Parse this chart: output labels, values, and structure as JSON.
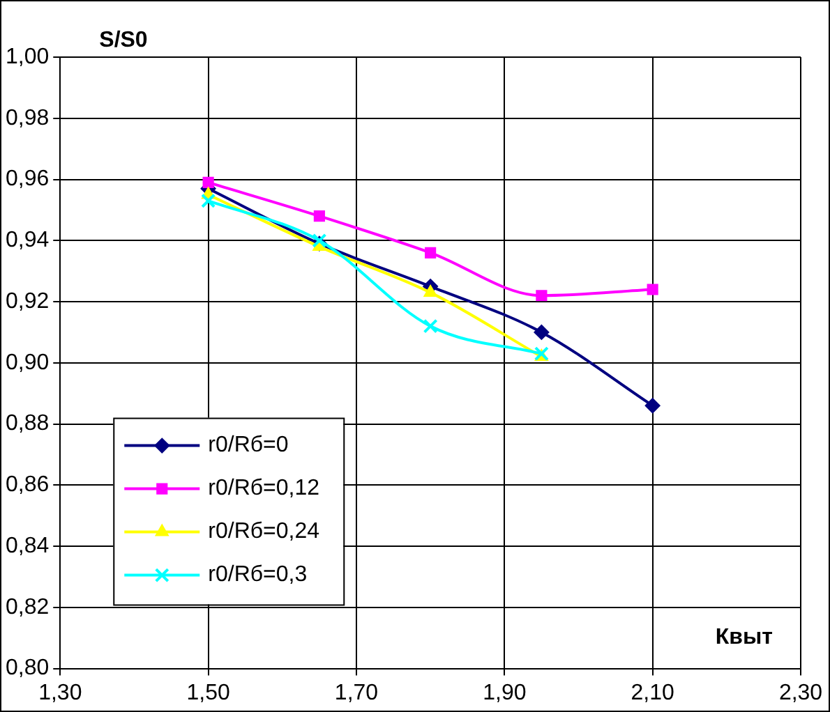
{
  "chart_data": {
    "type": "line",
    "xlabel": "Квыт",
    "ylabel": "S/S0",
    "x": [
      1.5,
      1.65,
      1.8,
      1.95,
      2.1
    ],
    "series": [
      {
        "name": "r0/Rб=0",
        "color": "#000080",
        "marker": "diamond",
        "values": [
          0.957,
          0.939,
          0.925,
          0.91,
          0.886
        ]
      },
      {
        "name": "r0/Rб=0,12",
        "color": "#ff00ff",
        "marker": "square",
        "values": [
          0.959,
          0.948,
          0.936,
          0.922,
          0.924
        ]
      },
      {
        "name": "r0/Rб=0,24",
        "color": "#ffff00",
        "marker": "triangle",
        "values": [
          0.955,
          0.938,
          0.923,
          0.902,
          null
        ]
      },
      {
        "name": "r0/Rб=0,3",
        "color": "#00ffff",
        "marker": "cross",
        "values": [
          0.953,
          0.94,
          0.912,
          0.903,
          null
        ]
      }
    ],
    "xlim": [
      1.3,
      2.3
    ],
    "xticks": [
      {
        "value": 1.3,
        "label": "1,30"
      },
      {
        "value": 1.5,
        "label": "1,50"
      },
      {
        "value": 1.7,
        "label": "1,70"
      },
      {
        "value": 1.9,
        "label": "1,90"
      },
      {
        "value": 2.1,
        "label": "2,10"
      },
      {
        "value": 2.3,
        "label": "2,30"
      }
    ],
    "ylim": [
      0.8,
      1.0
    ],
    "yticks": [
      {
        "value": 0.8,
        "label": "0,80"
      },
      {
        "value": 0.82,
        "label": "0,82"
      },
      {
        "value": 0.84,
        "label": "0,84"
      },
      {
        "value": 0.86,
        "label": "0,86"
      },
      {
        "value": 0.88,
        "label": "0,88"
      },
      {
        "value": 0.9,
        "label": "0,90"
      },
      {
        "value": 0.92,
        "label": "0,92"
      },
      {
        "value": 0.94,
        "label": "0,94"
      },
      {
        "value": 0.96,
        "label": "0,96"
      },
      {
        "value": 0.98,
        "label": "0,98"
      },
      {
        "value": 1.0,
        "label": "1,00"
      }
    ],
    "grid": true,
    "legend": "bottom left",
    "line_style": "solid"
  }
}
